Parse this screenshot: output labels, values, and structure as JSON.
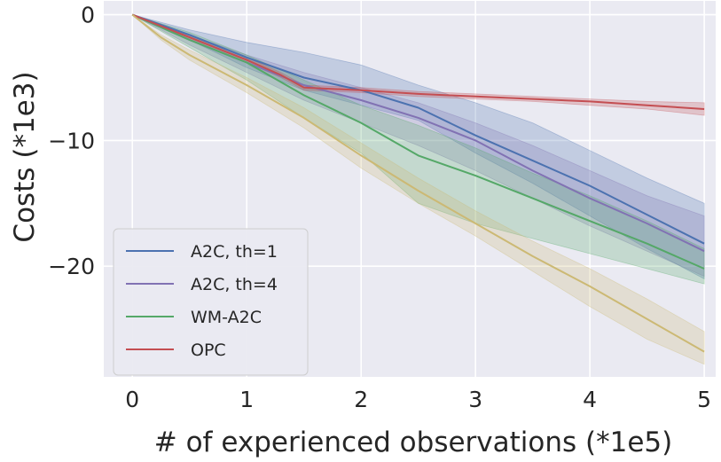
{
  "chart_data": {
    "type": "line",
    "title": "",
    "xlabel": "# of experienced observations (*1e5)",
    "ylabel": "Costs (*1e3)",
    "xlim": [
      -0.25,
      5.1
    ],
    "ylim": [
      -28.8,
      1.1
    ],
    "xticks": [
      0,
      1,
      2,
      3,
      4,
      5
    ],
    "xtick_labels": [
      "0",
      "1",
      "2",
      "3",
      "4",
      "5"
    ],
    "yticks": [
      0,
      -10,
      -20
    ],
    "ytick_labels": [
      "0",
      "−10",
      "−20"
    ],
    "grid": true,
    "legend_position": "lower-left",
    "series": [
      {
        "name": "A2C, th=1",
        "color": "#4c72b0",
        "x": [
          0,
          0.5,
          1,
          1.5,
          2,
          2.5,
          3,
          3.5,
          4,
          4.5,
          5
        ],
        "mean": [
          0,
          -1.6,
          -3.4,
          -5.0,
          -6.0,
          -7.4,
          -9.6,
          -11.6,
          -13.6,
          -15.9,
          -18.2
        ],
        "lower": [
          0,
          -2.0,
          -4.2,
          -6.0,
          -7.2,
          -8.4,
          -11.0,
          -13.4,
          -16.0,
          -18.6,
          -21.0
        ],
        "upper": [
          0,
          -1.2,
          -2.2,
          -3.0,
          -4.0,
          -5.6,
          -7.0,
          -8.6,
          -10.8,
          -13.0,
          -15.0
        ]
      },
      {
        "name": "A2C, th=4",
        "color": "#8172b3",
        "x": [
          0,
          0.5,
          1,
          1.5,
          2,
          2.5,
          3,
          3.5,
          4,
          4.5,
          5
        ],
        "mean": [
          0,
          -2.0,
          -3.8,
          -5.6,
          -6.8,
          -8.2,
          -10.0,
          -12.4,
          -14.6,
          -16.6,
          -18.8
        ],
        "lower": [
          0,
          -2.4,
          -4.6,
          -6.8,
          -8.6,
          -10.4,
          -12.4,
          -14.6,
          -16.8,
          -18.8,
          -20.8
        ],
        "upper": [
          0,
          -1.6,
          -3.2,
          -4.6,
          -5.8,
          -7.0,
          -8.6,
          -10.4,
          -12.4,
          -14.4,
          -16.0
        ]
      },
      {
        "name": "WM-A2C",
        "color": "#55a868",
        "x": [
          0,
          0.5,
          1,
          1.5,
          2,
          2.5,
          3,
          3.5,
          4,
          4.5,
          5
        ],
        "mean": [
          0,
          -2.0,
          -3.8,
          -6.4,
          -8.6,
          -11.2,
          -12.8,
          -14.6,
          -16.4,
          -18.2,
          -20.2
        ],
        "lower": [
          0,
          -2.6,
          -5.2,
          -8.2,
          -11.0,
          -15.0,
          -16.6,
          -17.8,
          -19.0,
          -20.2,
          -21.4
        ],
        "upper": [
          0,
          -1.4,
          -3.2,
          -5.2,
          -7.2,
          -8.8,
          -10.6,
          -12.6,
          -14.4,
          -16.4,
          -18.6
        ]
      },
      {
        "name": "OPC",
        "color": "#c44e52",
        "x": [
          0,
          0.5,
          1,
          1.3,
          1.5,
          2,
          2.5,
          3,
          3.5,
          4,
          4.5,
          5
        ],
        "mean": [
          0,
          -1.8,
          -3.6,
          -4.8,
          -5.8,
          -6.0,
          -6.3,
          -6.5,
          -6.7,
          -6.9,
          -7.2,
          -7.5
        ],
        "lower": [
          0,
          -2.0,
          -3.8,
          -5.0,
          -6.0,
          -6.2,
          -6.5,
          -6.7,
          -6.9,
          -7.2,
          -7.5,
          -8.0
        ],
        "upper": [
          0,
          -1.6,
          -3.4,
          -4.6,
          -5.6,
          -5.8,
          -6.1,
          -6.3,
          -6.5,
          -6.7,
          -6.9,
          -7.0
        ]
      },
      {
        "name": "",
        "color": "#ccb974",
        "x": [
          0,
          0.25,
          0.5,
          1,
          1.5,
          2,
          2.5,
          3,
          3.5,
          4,
          4.5,
          5
        ],
        "mean": [
          0,
          -1.8,
          -3.2,
          -5.6,
          -8.2,
          -11.2,
          -14.0,
          -16.6,
          -19.2,
          -21.6,
          -24.2,
          -26.8
        ],
        "lower": [
          0,
          -2.0,
          -3.6,
          -6.2,
          -9.0,
          -12.2,
          -15.0,
          -17.6,
          -20.4,
          -23.2,
          -25.8,
          -27.8
        ],
        "upper": [
          0,
          -1.6,
          -2.8,
          -5.0,
          -7.4,
          -10.2,
          -13.0,
          -15.6,
          -18.0,
          -20.2,
          -22.6,
          -25.2
        ]
      }
    ]
  }
}
